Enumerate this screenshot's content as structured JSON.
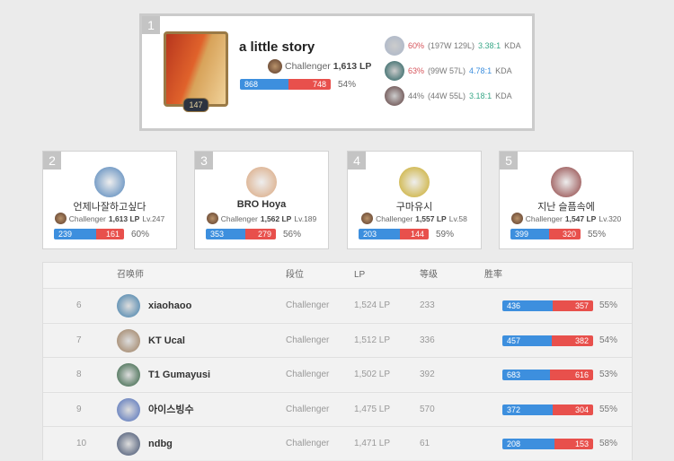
{
  "top": {
    "rank": "1",
    "name": "a little story",
    "level": "147",
    "tier": "Challenger",
    "lp": "1,613 LP",
    "wins": 868,
    "losses": 748,
    "winrate": "54%",
    "champions": [
      {
        "winrate": "60%",
        "record": "(197W 129L)",
        "kda": "3.38:1",
        "kda_label": "KDA",
        "wr_color": "#d6535a",
        "kda_color": "#3aa888",
        "icon_color": "#a8b4c8"
      },
      {
        "winrate": "63%",
        "record": "(99W 57L)",
        "kda": "4.78:1",
        "kda_label": "KDA",
        "wr_color": "#d6535a",
        "kda_color": "#3d8fde",
        "icon_color": "#1f5a5a"
      },
      {
        "winrate": "44%",
        "record": "(44W 55L)",
        "kda": "3.18:1",
        "kda_label": "KDA",
        "wr_color": "#777777",
        "kda_color": "#3aa888",
        "icon_color": "#5a3a3a"
      }
    ]
  },
  "cards": [
    {
      "rank": "2",
      "name": "언제나잘하고싶다",
      "tier": "Challenger",
      "lp": "1,613 LP",
      "level": "Lv.247",
      "wins": 239,
      "losses": 161,
      "winrate": "60%",
      "color": "#4a7fb8",
      "bold": false
    },
    {
      "rank": "3",
      "name": "BRO Hoya",
      "tier": "Challenger",
      "lp": "1,562 LP",
      "level": "Lv.189",
      "wins": 353,
      "losses": 279,
      "winrate": "56%",
      "color": "#d9a47a",
      "bold": true
    },
    {
      "rank": "4",
      "name": "구마유시",
      "tier": "Challenger",
      "lp": "1,557 LP",
      "level": "Lv.58",
      "wins": 203,
      "losses": 144,
      "winrate": "59%",
      "color": "#c8a820",
      "bold": false
    },
    {
      "rank": "5",
      "name": "지난 슬픔속에",
      "tier": "Challenger",
      "lp": "1,547 LP",
      "level": "Lv.320",
      "wins": 399,
      "losses": 320,
      "winrate": "55%",
      "color": "#8a3a3a",
      "bold": false
    }
  ],
  "table": {
    "headers": [
      "召唤师",
      "段位",
      "LP",
      "等级",
      "胜率"
    ],
    "rows": [
      {
        "rank": "6",
        "name": "xiaohaoo",
        "tier": "Challenger",
        "lp": "1,524 LP",
        "level": "233",
        "wins": 436,
        "losses": 357,
        "winrate": "55%",
        "color": "#3a7aa8"
      },
      {
        "rank": "7",
        "name": "KT Ucal",
        "tier": "Challenger",
        "lp": "1,512 LP",
        "level": "336",
        "wins": 457,
        "losses": 382,
        "winrate": "54%",
        "color": "#9a7a5a"
      },
      {
        "rank": "8",
        "name": "T1 Gumayusi",
        "tier": "Challenger",
        "lp": "1,502 LP",
        "level": "392",
        "wins": 683,
        "losses": 616,
        "winrate": "53%",
        "color": "#2a5a3a"
      },
      {
        "rank": "9",
        "name": "아이스빙수",
        "tier": "Challenger",
        "lp": "1,475 LP",
        "level": "570",
        "wins": 372,
        "losses": 304,
        "winrate": "55%",
        "color": "#4a6ab8"
      },
      {
        "rank": "10",
        "name": "ndbg",
        "tier": "Challenger",
        "lp": "1,471 LP",
        "level": "61",
        "wins": 208,
        "losses": 153,
        "winrate": "58%",
        "color": "#3a4a6a"
      }
    ]
  }
}
